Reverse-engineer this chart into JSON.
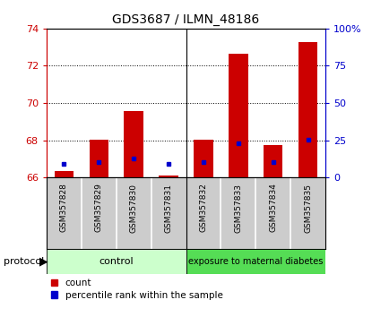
{
  "title": "GDS3687 / ILMN_48186",
  "samples": [
    "GSM357828",
    "GSM357829",
    "GSM357830",
    "GSM357831",
    "GSM357832",
    "GSM357833",
    "GSM357834",
    "GSM357835"
  ],
  "red_values": [
    66.35,
    68.05,
    69.55,
    66.12,
    68.05,
    72.65,
    67.75,
    73.25
  ],
  "blue_values": [
    66.72,
    66.82,
    67.02,
    66.72,
    66.82,
    67.82,
    66.82,
    68.02
  ],
  "baseline": 66.0,
  "y_left_min": 66,
  "y_left_max": 74,
  "y_right_min": 0,
  "y_right_max": 100,
  "y_ticks_left": [
    66,
    68,
    70,
    72,
    74
  ],
  "y_ticks_right": [
    0,
    25,
    50,
    75,
    100
  ],
  "y_ticks_right_labels": [
    "0",
    "25",
    "50",
    "75",
    "100%"
  ],
  "red_color": "#cc0000",
  "blue_color": "#0000cc",
  "control_light": "#ccffcc",
  "diabetes_medium": "#55dd55",
  "control_label": "control",
  "diabetes_label": "exposure to maternal diabetes",
  "protocol_label": "protocol",
  "legend_red": "count",
  "legend_blue": "percentile rank within the sample",
  "bar_width": 0.55,
  "xlim_left": -0.5,
  "xlim_right": 7.5,
  "n_control": 4,
  "gray_bg": "#cccccc",
  "white_bg": "#ffffff"
}
